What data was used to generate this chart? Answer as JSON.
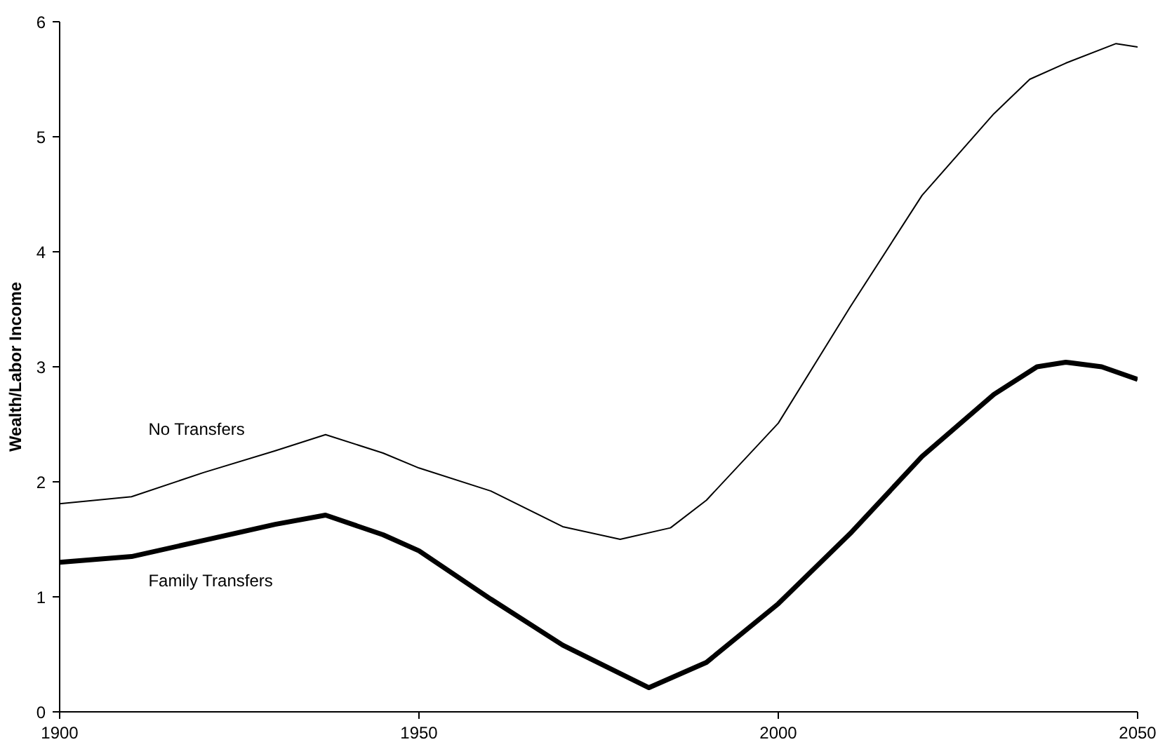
{
  "chart_data": {
    "type": "line",
    "ylabel": "Wealth/Labor Income",
    "xlim": [
      1900,
      2050
    ],
    "xticks": [
      1900,
      1950,
      2000,
      2050
    ],
    "ylim": [
      0,
      6
    ],
    "yticks": [
      0,
      1,
      2,
      3,
      4,
      5,
      6
    ],
    "grid": false,
    "series": [
      {
        "name": "No Transfers",
        "color": "#000000",
        "x": [
          1900,
          1910,
          1920,
          1930,
          1937,
          1945,
          1950,
          1960,
          1970,
          1978,
          1985,
          1990,
          2000,
          2010,
          2020,
          2030,
          2035,
          2040,
          2047,
          2050
        ],
        "values": [
          1.81,
          1.87,
          2.08,
          2.27,
          2.41,
          2.25,
          2.12,
          1.92,
          1.61,
          1.5,
          1.6,
          1.84,
          2.51,
          3.52,
          4.49,
          5.2,
          5.5,
          5.64,
          5.81,
          5.78
        ]
      },
      {
        "name": "Family Transfers",
        "color": "#000000",
        "x": [
          1900,
          1910,
          1920,
          1930,
          1937,
          1945,
          1950,
          1960,
          1970,
          1982,
          1990,
          2000,
          2010,
          2020,
          2030,
          2036,
          2040,
          2045,
          2050
        ],
        "values": [
          1.3,
          1.35,
          1.49,
          1.63,
          1.71,
          1.54,
          1.4,
          0.98,
          0.58,
          0.21,
          0.43,
          0.94,
          1.55,
          2.22,
          2.76,
          3.0,
          3.04,
          3.0,
          2.89
        ]
      }
    ]
  }
}
